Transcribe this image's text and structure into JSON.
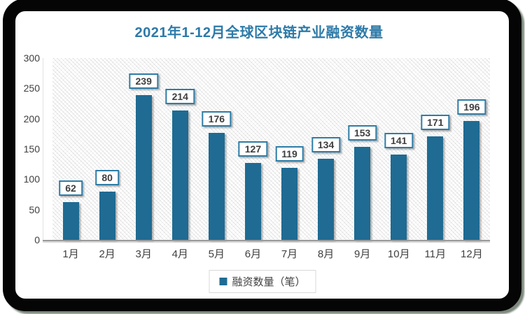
{
  "chart_data": {
    "type": "bar",
    "title": "2021年1-12月全球区块链产业融资数量",
    "categories": [
      "1月",
      "2月",
      "3月",
      "4月",
      "5月",
      "6月",
      "7月",
      "8月",
      "9月",
      "10月",
      "11月",
      "12月"
    ],
    "values": [
      62,
      80,
      239,
      214,
      176,
      127,
      119,
      134,
      153,
      141,
      171,
      196
    ],
    "series_name": "融资数量（笔）",
    "xlabel": "",
    "ylabel": "",
    "ylim": [
      0,
      300
    ],
    "y_ticks": [
      0,
      50,
      100,
      150,
      200,
      250,
      300
    ],
    "grid": false,
    "data_labels_shown": true,
    "legend_position": "bottom",
    "plot_background": "diagonal-crosshatch",
    "colors": {
      "bar": "#1f6b93",
      "title": "#2d7aa8",
      "label_box_border": "#2e7ca6",
      "text": "#404040",
      "axis_line": "#9a9a9a",
      "legend_border": "#d9d9d9",
      "frame": "#050505"
    }
  }
}
